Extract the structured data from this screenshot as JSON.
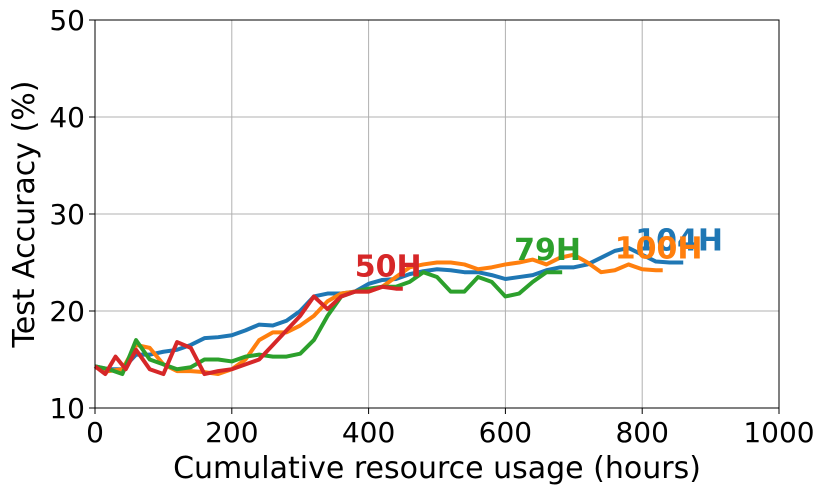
{
  "chart_data": {
    "type": "line",
    "xlabel": "Cumulative resource usage (hours)",
    "ylabel": "Test Accuracy (%)",
    "xlim": [
      0,
      1000
    ],
    "xticks": [
      0,
      200,
      400,
      600,
      800,
      1000
    ],
    "ylim": [
      10,
      50
    ],
    "yticks": [
      10,
      20,
      30,
      40,
      50
    ],
    "grid": true,
    "series": [
      {
        "name": "104H",
        "color": "#1f77b4",
        "x": [
          0,
          20,
          40,
          60,
          80,
          100,
          120,
          140,
          160,
          180,
          200,
          220,
          240,
          260,
          280,
          300,
          320,
          340,
          360,
          380,
          400,
          420,
          440,
          460,
          480,
          500,
          520,
          540,
          560,
          580,
          600,
          620,
          640,
          660,
          680,
          700,
          720,
          740,
          760,
          780,
          800,
          820,
          840,
          860
        ],
        "values": [
          14.3,
          14,
          14,
          15.5,
          15.5,
          15.8,
          16,
          16.5,
          17.2,
          17.3,
          17.5,
          18,
          18.6,
          18.5,
          19,
          20,
          21.5,
          21.8,
          21.8,
          22,
          22.8,
          23.2,
          23.3,
          23.8,
          24.1,
          24.3,
          24.2,
          24,
          24,
          23.7,
          23.3,
          23.5,
          23.7,
          24.2,
          24.5,
          24.5,
          24.8,
          25.5,
          26.2,
          26.5,
          25.8,
          25.1,
          25,
          25
        ]
      },
      {
        "name": "100H",
        "color": "#ff7f0e",
        "x": [
          0,
          20,
          40,
          60,
          80,
          100,
          120,
          140,
          160,
          180,
          200,
          220,
          240,
          260,
          280,
          300,
          320,
          340,
          360,
          380,
          400,
          420,
          440,
          460,
          480,
          500,
          520,
          540,
          560,
          580,
          600,
          620,
          640,
          660,
          680,
          700,
          720,
          740,
          760,
          780,
          800,
          820,
          830
        ],
        "values": [
          14.2,
          13.8,
          14,
          16.5,
          16.2,
          14.5,
          13.8,
          13.8,
          13.7,
          13.5,
          14,
          15,
          17,
          17.8,
          17.8,
          18.5,
          19.5,
          21,
          21.8,
          22,
          22,
          22.5,
          23.5,
          24.5,
          24.8,
          25,
          25,
          24.8,
          24.3,
          24.5,
          24.8,
          25,
          25.3,
          24.8,
          25.5,
          25.8,
          25,
          24,
          24.2,
          24.8,
          24.3,
          24.2,
          24.2
        ]
      },
      {
        "name": "79H",
        "color": "#2ca02c",
        "x": [
          0,
          20,
          40,
          60,
          80,
          100,
          120,
          140,
          160,
          180,
          200,
          220,
          240,
          260,
          280,
          300,
          320,
          340,
          360,
          380,
          400,
          420,
          440,
          460,
          480,
          500,
          520,
          540,
          560,
          580,
          600,
          620,
          640,
          660,
          683
        ],
        "values": [
          14.3,
          14,
          13.5,
          17,
          15,
          14.5,
          14,
          14.2,
          15,
          15,
          14.8,
          15.3,
          15.5,
          15.3,
          15.3,
          15.6,
          17,
          19.5,
          21.5,
          22,
          22.3,
          22.5,
          22.5,
          23,
          24,
          23.5,
          22,
          22,
          23.5,
          23,
          21.5,
          21.8,
          23,
          24,
          24
        ]
      },
      {
        "name": "50H",
        "color": "#d62728",
        "x": [
          0,
          15,
          30,
          45,
          60,
          80,
          100,
          120,
          140,
          160,
          180,
          200,
          220,
          240,
          260,
          280,
          300,
          320,
          340,
          360,
          380,
          400,
          420,
          440,
          450
        ],
        "values": [
          14.3,
          13.5,
          15.3,
          14,
          16,
          14,
          13.5,
          16.8,
          16.2,
          13.5,
          13.8,
          14,
          14.5,
          15,
          16.5,
          18,
          19.5,
          21.5,
          20.2,
          21.5,
          22,
          22,
          22.5,
          22.3,
          22.3
        ]
      }
    ]
  }
}
